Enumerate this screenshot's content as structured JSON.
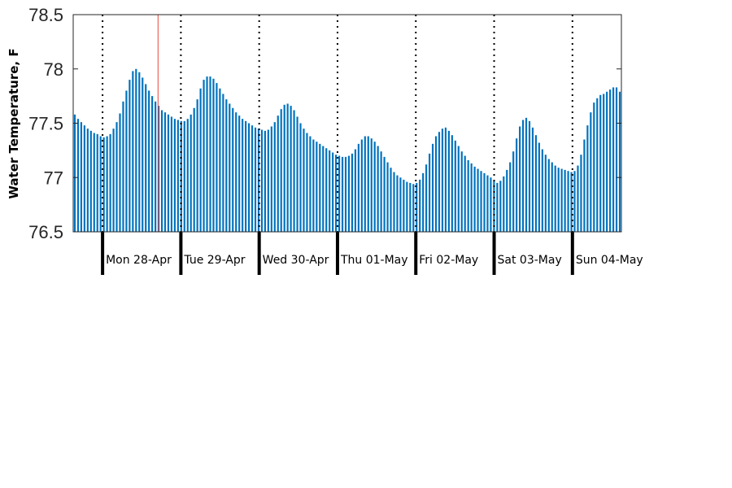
{
  "chart_data": {
    "type": "bar",
    "title": "",
    "xlabel": "",
    "ylabel": "Water Temperature, F",
    "ylim": [
      76.5,
      78.5
    ],
    "yticks": [
      "76.5",
      "77",
      "77.5",
      "78",
      "78.5"
    ],
    "grid": false,
    "days": [
      "Mon 28-Apr",
      "Tue 29-Apr",
      "Wed 30-Apr",
      "Thu 01-May",
      "Fri 02-May",
      "Sat 03-May",
      "Sun 04-May"
    ],
    "day_boundaries_hours": [
      9,
      33,
      57,
      81,
      105,
      129,
      153
    ],
    "marker_hour": 26,
    "x_range_hours": [
      0,
      168
    ],
    "bar_interval_hours": 1,
    "bar_color": "#0072BD",
    "marker_color": "#e8443a",
    "series": [
      {
        "values": [
          77.58,
          77.54,
          77.51,
          77.48,
          77.45,
          77.43,
          77.41,
          77.4,
          77.38,
          77.37,
          77.38,
          77.4,
          77.45,
          77.51,
          77.59,
          77.7,
          77.8,
          77.9,
          77.98,
          78.0,
          77.97,
          77.92,
          77.86,
          77.8,
          77.75,
          77.7,
          77.66,
          77.62,
          77.6,
          77.58,
          77.56,
          77.54,
          77.53,
          77.52,
          77.52,
          77.54,
          77.58,
          77.64,
          77.72,
          77.82,
          77.9,
          77.93,
          77.93,
          77.91,
          77.87,
          77.82,
          77.77,
          77.72,
          77.68,
          77.64,
          77.6,
          77.57,
          77.54,
          77.52,
          77.5,
          77.48,
          77.46,
          77.45,
          77.44,
          77.43,
          77.44,
          77.47,
          77.51,
          77.57,
          77.63,
          77.67,
          77.68,
          77.66,
          77.62,
          77.56,
          77.5,
          77.45,
          77.41,
          77.38,
          77.35,
          77.33,
          77.31,
          77.29,
          77.27,
          77.25,
          77.23,
          77.21,
          77.2,
          77.19,
          77.19,
          77.2,
          77.22,
          77.26,
          77.31,
          77.35,
          77.38,
          77.38,
          77.36,
          77.33,
          77.29,
          77.24,
          77.19,
          77.14,
          77.09,
          77.05,
          77.02,
          77.0,
          76.98,
          76.96,
          76.95,
          76.94,
          76.95,
          76.98,
          77.04,
          77.12,
          77.22,
          77.31,
          77.38,
          77.42,
          77.45,
          77.46,
          77.43,
          77.39,
          77.34,
          77.29,
          77.24,
          77.2,
          77.16,
          77.13,
          77.1,
          77.08,
          77.06,
          77.04,
          77.02,
          77.0,
          76.97,
          76.95,
          76.97,
          77.01,
          77.07,
          77.14,
          77.24,
          77.36,
          77.47,
          77.53,
          77.55,
          77.52,
          77.46,
          77.39,
          77.32,
          77.26,
          77.21,
          77.17,
          77.14,
          77.11,
          77.09,
          77.08,
          77.07,
          77.06,
          77.05,
          77.06,
          77.11,
          77.21,
          77.35,
          77.48,
          77.6,
          77.69,
          77.73,
          77.76,
          77.77,
          77.79,
          77.81,
          77.83,
          77.83,
          77.79
        ]
      }
    ]
  }
}
